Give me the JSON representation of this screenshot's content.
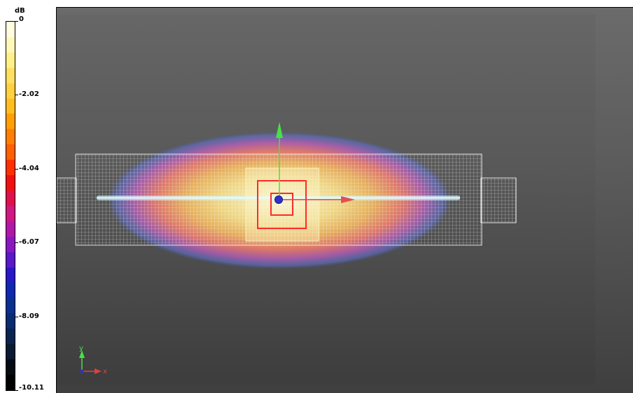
{
  "legend": {
    "unit": "dB",
    "ticks": [
      {
        "label": "0",
        "frac": 0.0
      },
      {
        "label": "-2.02",
        "frac": 0.2
      },
      {
        "label": "-4.04",
        "frac": 0.4
      },
      {
        "label": "-6.07",
        "frac": 0.6
      },
      {
        "label": "-8.09",
        "frac": 0.8
      },
      {
        "label": "-10.11",
        "frac": 1.0
      }
    ],
    "colors": [
      "#fffce0",
      "#fff8b8",
      "#fff088",
      "#ffe060",
      "#ffd040",
      "#ffbe20",
      "#ffa000",
      "#ff8000",
      "#ff6000",
      "#ff3000",
      "#f01010",
      "#e0104a",
      "#d01880",
      "#b018a8",
      "#8a18c0",
      "#5a18c8",
      "#2818c8",
      "#1028b0",
      "#0a3090",
      "#0a2c70",
      "#0a2450",
      "#0a1a30",
      "#050a14",
      "#000000"
    ]
  },
  "viewport": {
    "axis_triad": {
      "x_label": "x",
      "y_label": "y"
    },
    "colors": {
      "mesh": "#ffffff",
      "arrow_y": "#48e048",
      "arrow_x": "#e04040",
      "center_ball": "#3030d0",
      "selection": "#ff2a2a"
    }
  }
}
